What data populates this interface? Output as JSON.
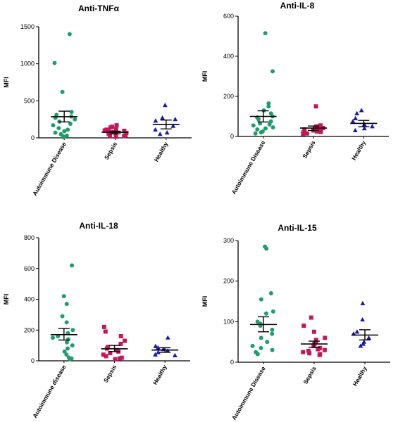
{
  "chart_data": [
    {
      "type": "scatter",
      "title": "Anti-TNFα",
      "ylabel": "MFI",
      "ylim": [
        0,
        1500
      ],
      "yticks": [
        "0",
        "500",
        "1000",
        "1500"
      ],
      "categories": [
        "Autoimmune Disease",
        "Sepsis",
        "Healthy"
      ],
      "groups": [
        {
          "category": "Autoimmune Disease",
          "color": "#1e9e6e",
          "marker": "circle",
          "values": [
            1400,
            1010,
            620,
            350,
            310,
            290,
            270,
            250,
            220,
            190,
            170,
            130,
            110,
            90,
            70,
            50,
            30,
            20,
            10
          ],
          "mean": 285,
          "sem_low": 215,
          "sem_high": 360
        },
        {
          "category": "Sepsis",
          "color": "#c2185b",
          "marker": "square",
          "values": [
            170,
            150,
            140,
            120,
            110,
            100,
            95,
            85,
            75,
            65,
            55,
            45,
            35,
            25,
            20,
            15
          ],
          "mean": 75,
          "sem_low": 55,
          "sem_high": 90
        },
        {
          "category": "Healthy",
          "color": "#1a1aa6",
          "marker": "triangle",
          "values": [
            440,
            270,
            250,
            230,
            160,
            110,
            70,
            50
          ],
          "mean": 180,
          "sem_low": 120,
          "sem_high": 240
        }
      ]
    },
    {
      "type": "scatter",
      "title": "Anti-IL-8",
      "ylabel": "MFI",
      "ylim": [
        0,
        600
      ],
      "yticks": [
        "0",
        "200",
        "400",
        "600"
      ],
      "categories": [
        "Autoimmune Disease",
        "Sepsis",
        "Healthy"
      ],
      "groups": [
        {
          "category": "Autoimmune Disease",
          "color": "#1e9e6e",
          "marker": "circle",
          "values": [
            515,
            325,
            165,
            150,
            130,
            115,
            100,
            95,
            85,
            75,
            65,
            60,
            55,
            45,
            40,
            35,
            25,
            20,
            15
          ],
          "mean": 100,
          "sem_low": 72,
          "sem_high": 128
        },
        {
          "category": "Sepsis",
          "color": "#c2185b",
          "marker": "square",
          "values": [
            150,
            55,
            50,
            45,
            42,
            38,
            35,
            30,
            28,
            25,
            22,
            20,
            15,
            12
          ],
          "mean": 42,
          "sem_low": 30,
          "sem_high": 52
        },
        {
          "category": "Healthy",
          "color": "#1a1aa6",
          "marker": "triangle",
          "values": [
            130,
            115,
            90,
            75,
            60,
            50,
            40,
            30
          ],
          "mean": 65,
          "sem_low": 48,
          "sem_high": 80
        }
      ]
    },
    {
      "type": "scatter",
      "title": "Anti-IL-18",
      "ylabel": "MFI",
      "ylim": [
        0,
        800
      ],
      "yticks": [
        "0",
        "200",
        "400",
        "600",
        "800"
      ],
      "categories": [
        "Autoimmune disease",
        "Sepsis",
        "Healthy"
      ],
      "groups": [
        {
          "category": "Autoimmune disease",
          "color": "#1e9e6e",
          "marker": "circle",
          "values": [
            620,
            420,
            370,
            290,
            250,
            200,
            180,
            160,
            150,
            140,
            120,
            100,
            80,
            60,
            40,
            20,
            15,
            10
          ],
          "mean": 170,
          "sem_low": 135,
          "sem_high": 210
        },
        {
          "category": "Sepsis",
          "color": "#c2185b",
          "marker": "square",
          "values": [
            220,
            190,
            160,
            130,
            110,
            90,
            80,
            70,
            60,
            50,
            40,
            30,
            20,
            15,
            10
          ],
          "mean": 78,
          "sem_low": 60,
          "sem_high": 100
        },
        {
          "category": "Healthy",
          "color": "#1a1aa6",
          "marker": "triangle",
          "values": [
            150,
            95,
            85,
            75,
            65,
            55,
            40,
            35
          ],
          "mean": 70,
          "sem_low": 55,
          "sem_high": 85
        }
      ]
    },
    {
      "type": "scatter",
      "title": "Anti-IL-15",
      "ylabel": "MFI",
      "ylim": [
        0,
        300
      ],
      "yticks": [
        "0",
        "100",
        "200",
        "300"
      ],
      "categories": [
        "Autoimmune Disease",
        "Sepsis",
        "Healthy"
      ],
      "groups": [
        {
          "category": "Autoimmune Disease",
          "color": "#1e9e6e",
          "marker": "circle",
          "values": [
            285,
            280,
            170,
            155,
            125,
            120,
            100,
            95,
            90,
            80,
            70,
            60,
            50,
            40,
            35,
            30,
            25,
            20
          ],
          "mean": 93,
          "sem_low": 75,
          "sem_high": 112
        },
        {
          "category": "Sepsis",
          "color": "#c2185b",
          "marker": "square",
          "values": [
            110,
            90,
            75,
            60,
            55,
            50,
            45,
            40,
            35,
            32,
            30,
            28,
            25,
            22,
            20,
            18
          ],
          "mean": 45,
          "sem_low": 37,
          "sem_high": 52
        },
        {
          "category": "Healthy",
          "color": "#1a1aa6",
          "marker": "triangle",
          "values": [
            145,
            105,
            75,
            70,
            60,
            50,
            45,
            40
          ],
          "mean": 67,
          "sem_low": 55,
          "sem_high": 80
        }
      ]
    }
  ]
}
